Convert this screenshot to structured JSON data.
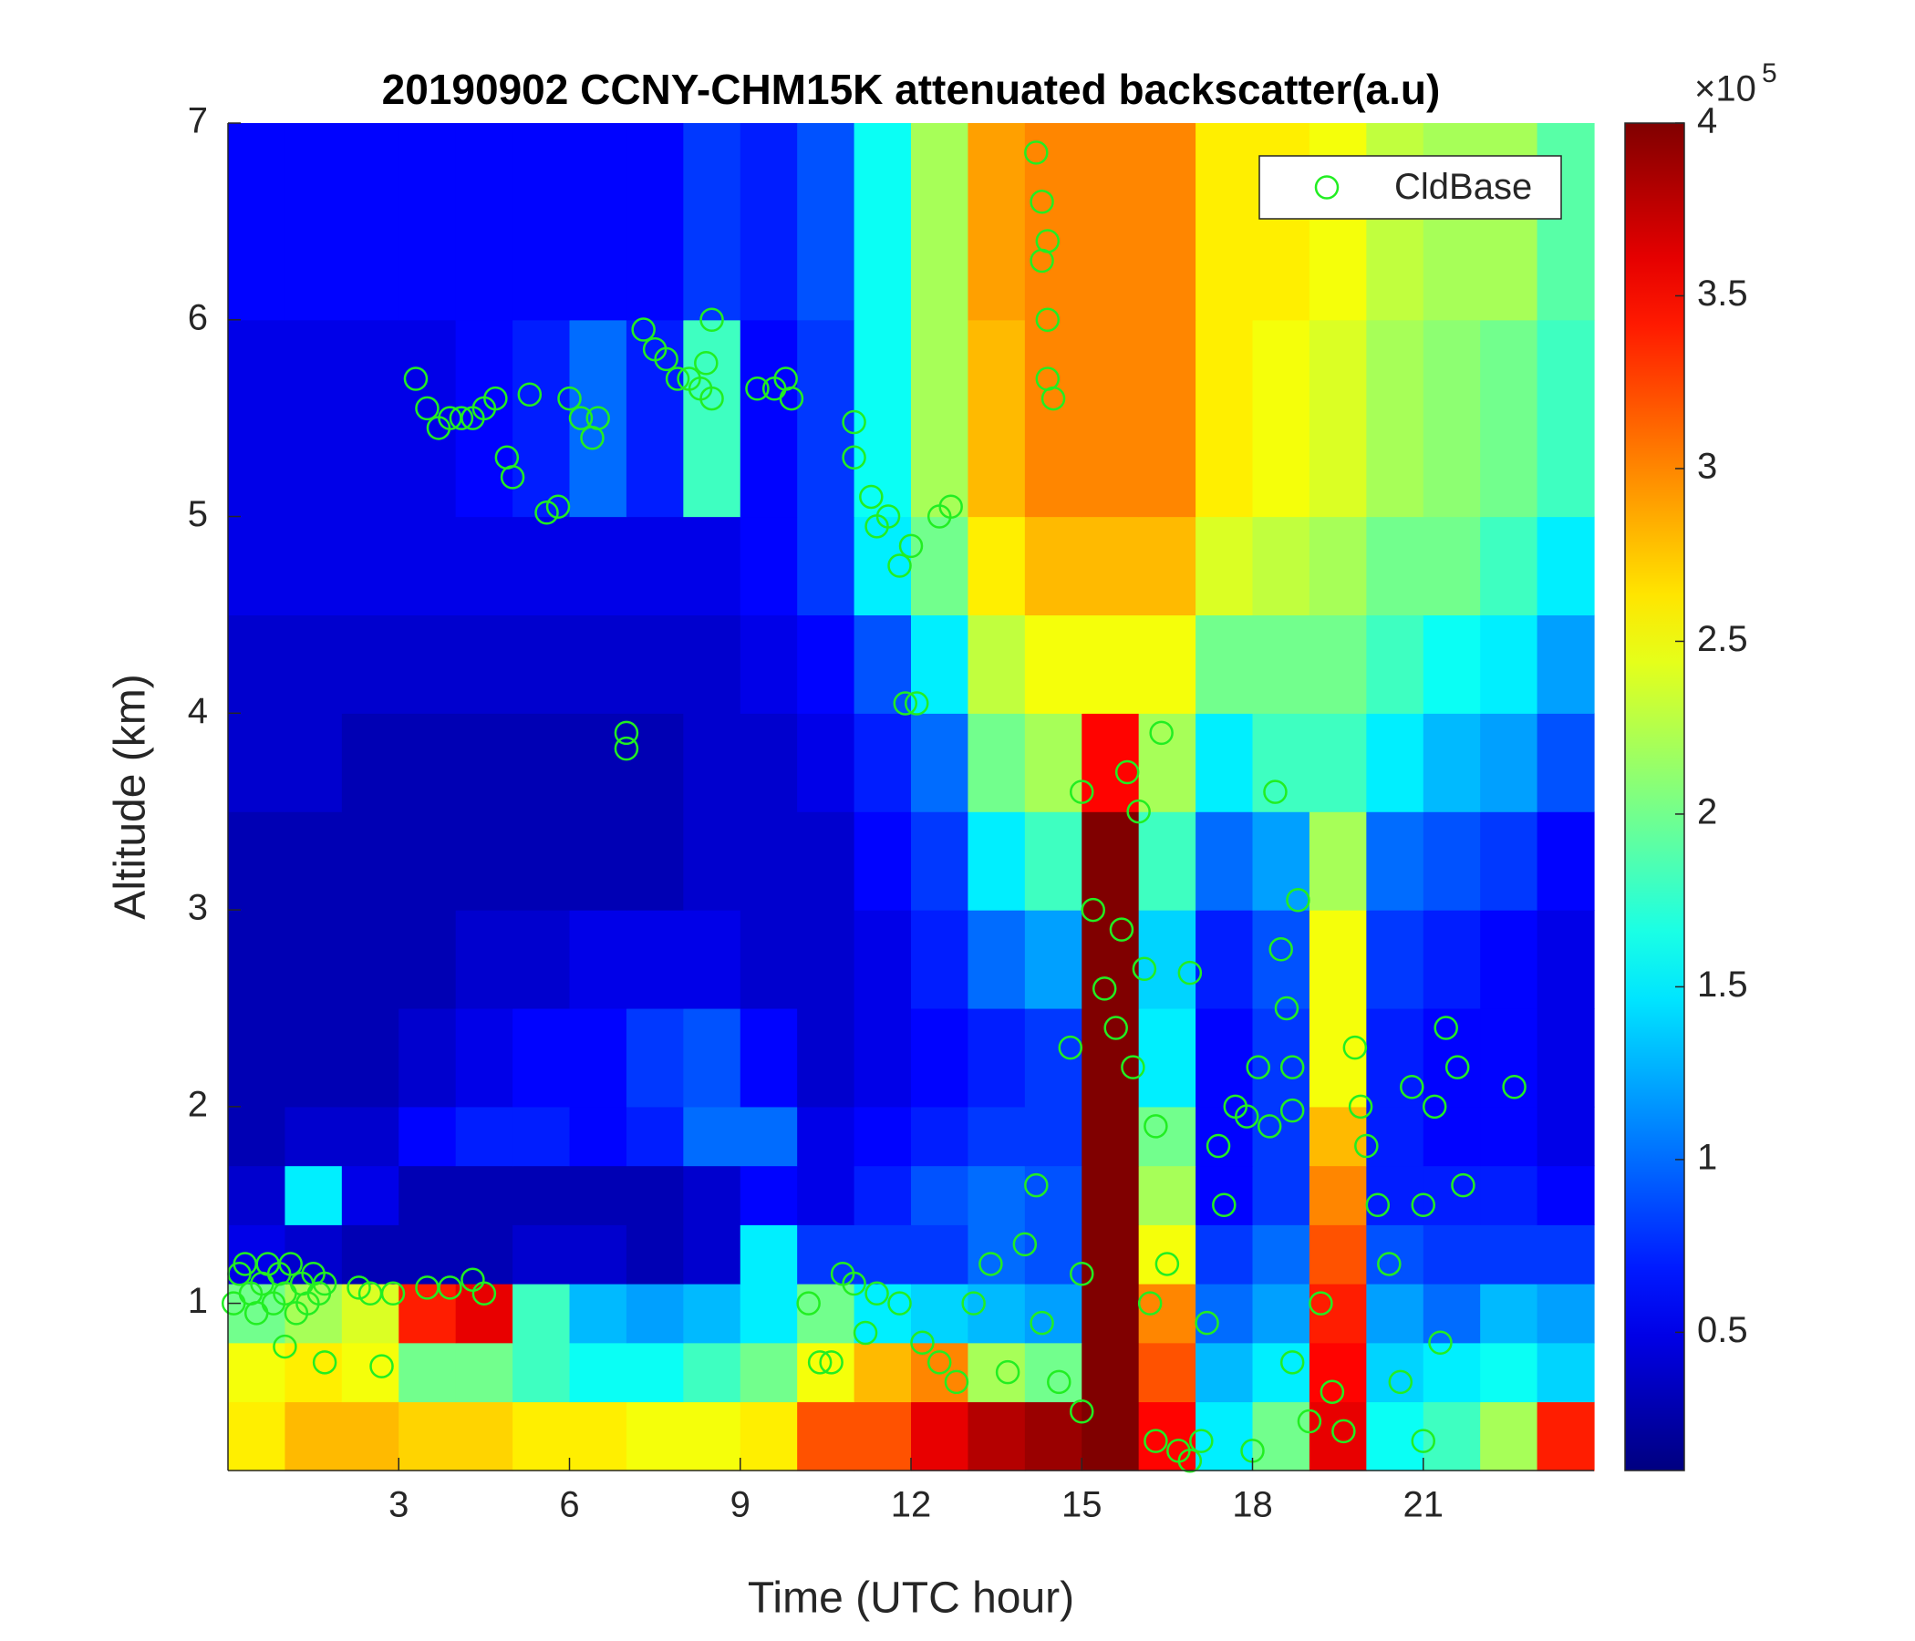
{
  "chart_data": {
    "type": "heatmap",
    "title": "20190902 CCNY-CHM15K attenuated backscatter(a.u)",
    "x_label": "Time (UTC hour)",
    "y_label": "Altitude (km)",
    "xlim": [
      0,
      24
    ],
    "xticks": [
      3,
      6,
      9,
      12,
      15,
      18,
      21
    ],
    "ylim": [
      0.15,
      7
    ],
    "yticks": [
      1,
      2,
      3,
      4,
      5,
      6,
      7
    ],
    "colormap": "jet",
    "clim": [
      0.1,
      4
    ],
    "cticks": [
      0.5,
      1,
      1.5,
      2,
      2.5,
      3,
      3.5,
      4
    ],
    "colorbar_scale_base": "×10",
    "colorbar_scale_exponent": "5",
    "legend_position": "upper right",
    "x_edges": [
      0,
      1,
      2,
      3,
      4,
      5,
      6,
      7,
      8,
      9,
      10,
      11,
      12,
      13,
      14,
      15,
      16,
      17,
      18,
      19,
      20,
      21,
      22,
      23,
      24
    ],
    "y_edges": [
      0.15,
      0.5,
      0.8,
      1.1,
      1.4,
      1.7,
      2,
      2.5,
      3,
      3.5,
      4,
      4.5,
      5,
      6,
      7
    ],
    "z": [
      [
        2.6,
        2.8,
        2.8,
        2.7,
        2.7,
        2.6,
        2.6,
        2.5,
        2.5,
        2.6,
        3.2,
        3.2,
        3.6,
        3.8,
        3.9,
        4,
        3.5,
        1.5,
        2.0,
        3.6,
        1.6,
        1.8,
        2.2,
        3.4
      ],
      [
        2.5,
        2.6,
        2.5,
        2.0,
        2.0,
        1.8,
        1.6,
        1.6,
        1.8,
        2.0,
        2.5,
        2.8,
        3.0,
        2.2,
        2.0,
        4,
        3.2,
        1.3,
        1.5,
        3.5,
        1.4,
        1.5,
        1.6,
        1.4
      ],
      [
        2.0,
        2.2,
        2.4,
        3.4,
        3.6,
        1.8,
        1.3,
        1.2,
        1.3,
        1.5,
        2.0,
        1.5,
        1.4,
        1.3,
        1.2,
        4,
        3.0,
        1.0,
        1.2,
        3.4,
        1.2,
        1.0,
        1.3,
        1.2
      ],
      [
        0.5,
        0.4,
        0.3,
        0.3,
        0.3,
        0.4,
        0.4,
        0.3,
        0.4,
        1.5,
        0.8,
        0.8,
        0.8,
        1.0,
        0.9,
        4,
        2.5,
        0.8,
        1.0,
        3.2,
        0.9,
        0.8,
        0.8,
        0.8
      ],
      [
        0.4,
        1.5,
        0.5,
        0.3,
        0.3,
        0.3,
        0.3,
        0.3,
        0.4,
        0.6,
        0.5,
        0.7,
        0.9,
        1.0,
        0.9,
        4,
        2.2,
        0.6,
        0.8,
        3.0,
        0.7,
        0.7,
        0.7,
        0.6
      ],
      [
        0.3,
        0.4,
        0.4,
        0.6,
        0.7,
        0.7,
        0.6,
        0.7,
        1.0,
        1.0,
        0.5,
        0.6,
        0.7,
        0.8,
        0.8,
        4,
        2.0,
        0.6,
        0.8,
        2.8,
        0.7,
        0.6,
        0.6,
        0.5
      ],
      [
        0.3,
        0.3,
        0.3,
        0.4,
        0.5,
        0.6,
        0.6,
        0.8,
        0.9,
        0.6,
        0.4,
        0.5,
        0.6,
        0.7,
        0.8,
        4,
        1.5,
        0.6,
        0.8,
        2.5,
        0.7,
        0.6,
        0.6,
        0.5
      ],
      [
        0.3,
        0.3,
        0.3,
        0.3,
        0.4,
        0.4,
        0.5,
        0.5,
        0.5,
        0.4,
        0.4,
        0.5,
        0.7,
        1.0,
        1.2,
        4,
        1.4,
        0.7,
        0.9,
        2.5,
        0.8,
        0.7,
        0.6,
        0.5
      ],
      [
        0.3,
        0.3,
        0.3,
        0.3,
        0.3,
        0.3,
        0.3,
        0.3,
        0.4,
        0.4,
        0.4,
        0.6,
        0.8,
        1.5,
        1.8,
        4,
        1.8,
        1.0,
        1.2,
        2.2,
        1.0,
        0.9,
        0.8,
        0.6
      ],
      [
        0.4,
        0.4,
        0.3,
        0.3,
        0.3,
        0.3,
        0.3,
        0.3,
        0.4,
        0.4,
        0.5,
        0.7,
        1.0,
        2.0,
        2.2,
        3.5,
        2.2,
        1.5,
        1.8,
        1.8,
        1.5,
        1.3,
        1.2,
        0.9
      ],
      [
        0.4,
        0.4,
        0.4,
        0.4,
        0.4,
        0.4,
        0.4,
        0.4,
        0.4,
        0.5,
        0.6,
        0.9,
        1.5,
        2.3,
        2.5,
        2.5,
        2.5,
        2.0,
        2.0,
        2.0,
        1.8,
        1.6,
        1.5,
        1.2
      ],
      [
        0.5,
        0.5,
        0.5,
        0.5,
        0.5,
        0.5,
        0.5,
        0.5,
        0.5,
        0.6,
        0.8,
        1.5,
        2.0,
        2.6,
        2.8,
        2.8,
        2.8,
        2.4,
        2.3,
        2.2,
        2.0,
        2.0,
        1.8,
        1.5
      ],
      [
        0.5,
        0.5,
        0.5,
        0.5,
        0.6,
        0.7,
        1.0,
        0.7,
        1.8,
        0.6,
        0.8,
        1.6,
        2.2,
        2.8,
        3.0,
        3.0,
        3.0,
        2.6,
        2.5,
        2.4,
        2.2,
        2.1,
        2.0,
        1.8
      ],
      [
        0.6,
        0.6,
        0.6,
        0.6,
        0.6,
        0.6,
        0.6,
        0.6,
        0.8,
        0.7,
        0.9,
        1.6,
        2.2,
        2.9,
        3.0,
        3.0,
        3.0,
        2.6,
        2.6,
        2.5,
        2.3,
        2.2,
        2.2,
        1.9
      ]
    ],
    "series": [
      {
        "name": "CldBase",
        "type": "scatter",
        "color": "#22ee22",
        "x": [
          0.1,
          0.2,
          0.3,
          0.4,
          0.5,
          0.6,
          0.7,
          0.8,
          0.9,
          1.0,
          1.1,
          1.2,
          1.3,
          1.4,
          1.5,
          1.6,
          1.7,
          1.7,
          1.0,
          2.3,
          2.5,
          2.7,
          2.9,
          3.5,
          3.9,
          4.3,
          4.5,
          3.3,
          3.5,
          3.7,
          3.9,
          4.1,
          4.3,
          4.5,
          4.7,
          4.9,
          5.0,
          5.3,
          5.6,
          5.8,
          6.0,
          6.2,
          6.4,
          6.5,
          7.0,
          7.0,
          7.3,
          7.5,
          7.7,
          7.9,
          8.1,
          8.3,
          8.5,
          8.5,
          8.4,
          9.3,
          9.6,
          9.8,
          9.9,
          11.0,
          11.0,
          11.3,
          11.4,
          11.6,
          11.8,
          12.0,
          12.5,
          12.7,
          11.9,
          12.1,
          14.2,
          14.3,
          14.3,
          14.4,
          14.4,
          14.5,
          14.4,
          10.2,
          10.4,
          10.6,
          10.8,
          11.0,
          11.2,
          11.4,
          11.8,
          12.2,
          12.5,
          12.8,
          13.1,
          13.4,
          13.7,
          14.0,
          14.2,
          14.3,
          14.6,
          15.0,
          15.0,
          14.8,
          15.0,
          15.2,
          15.4,
          15.6,
          15.7,
          15.8,
          15.9,
          16.0,
          16.1,
          16.2,
          16.3,
          16.3,
          16.4,
          16.5,
          16.7,
          16.9,
          17.1,
          17.2,
          16.9,
          17.4,
          17.5,
          17.7,
          17.9,
          18.1,
          18.3,
          18.4,
          18.5,
          18.6,
          18.7,
          18.8,
          18.7,
          18.0,
          18.7,
          19.0,
          19.2,
          19.4,
          19.6,
          19.8,
          19.9,
          20.0,
          20.2,
          20.4,
          20.6,
          20.8,
          21.0,
          21.0,
          21.2,
          21.3,
          21.4,
          21.6,
          21.7,
          22.6
        ],
        "values": [
          1.0,
          1.15,
          1.2,
          1.05,
          0.95,
          1.1,
          1.2,
          1.0,
          1.15,
          1.05,
          1.2,
          0.95,
          1.1,
          1.0,
          1.15,
          1.05,
          1.1,
          0.7,
          0.78,
          1.08,
          1.05,
          0.68,
          1.05,
          1.08,
          1.08,
          1.12,
          1.05,
          5.7,
          5.55,
          5.45,
          5.5,
          5.5,
          5.5,
          5.55,
          5.6,
          5.3,
          5.2,
          5.62,
          5.02,
          5.05,
          5.6,
          5.5,
          5.4,
          5.5,
          3.9,
          3.82,
          5.95,
          5.85,
          5.8,
          5.7,
          5.7,
          5.65,
          5.6,
          6.0,
          5.78,
          5.65,
          5.65,
          5.7,
          5.6,
          5.48,
          5.3,
          5.1,
          4.95,
          5.0,
          4.75,
          4.85,
          5.0,
          5.05,
          4.05,
          4.05,
          6.85,
          6.6,
          6.3,
          6.0,
          5.7,
          5.6,
          6.4,
          1.0,
          0.7,
          0.7,
          1.15,
          1.1,
          0.85,
          1.05,
          1.0,
          0.8,
          0.7,
          0.6,
          1.0,
          1.2,
          0.65,
          1.3,
          1.6,
          0.9,
          0.6,
          1.15,
          0.45,
          2.3,
          3.6,
          3.0,
          2.6,
          2.4,
          2.9,
          3.7,
          2.2,
          3.5,
          2.7,
          1.0,
          1.9,
          0.3,
          3.9,
          1.2,
          0.25,
          0.2,
          0.3,
          0.9,
          2.68,
          1.8,
          1.5,
          2.0,
          1.95,
          2.2,
          1.9,
          3.6,
          2.8,
          2.5,
          2.2,
          3.05,
          1.98,
          0.25,
          0.7,
          0.4,
          1.0,
          0.55,
          0.35,
          2.3,
          2.0,
          1.8,
          1.5,
          1.2,
          0.6,
          2.1,
          1.5,
          0.3,
          2.0,
          0.8,
          2.4,
          2.2,
          1.6,
          2.1
        ]
      }
    ]
  }
}
